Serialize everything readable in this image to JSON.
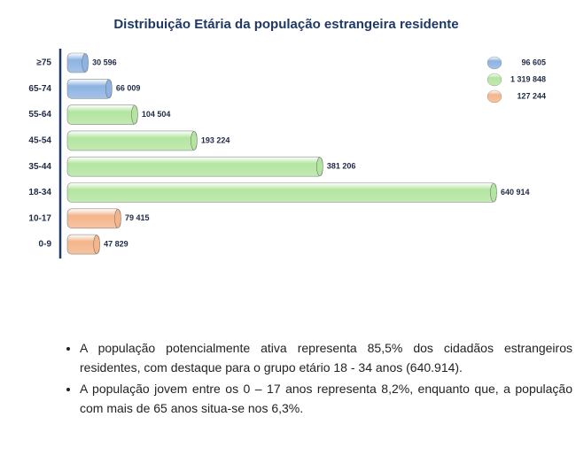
{
  "chart_data": {
    "type": "bar",
    "orientation": "horizontal",
    "title": "Distribuição Etária da população estrangeira residente",
    "categories": [
      "≥75",
      "65-74",
      "55-64",
      "45-54",
      "35-44",
      "18-34",
      "10-17",
      "0-9"
    ],
    "series": [
      {
        "name": "96 605",
        "color": "#8db3e2",
        "values": [
          30596,
          66009,
          null,
          null,
          null,
          null,
          null,
          null
        ],
        "value_labels": [
          "30 596",
          "66 009",
          null,
          null,
          null,
          null,
          null,
          null
        ]
      },
      {
        "name": "1 319 848",
        "color": "#b3e5a0",
        "values": [
          null,
          null,
          104504,
          193224,
          381206,
          640914,
          null,
          null
        ],
        "value_labels": [
          null,
          null,
          "104 504",
          "193 224",
          "381 206",
          "640 914",
          null,
          null
        ]
      },
      {
        "name": "127 244",
        "color": "#f4b58a",
        "values": [
          null,
          null,
          null,
          null,
          null,
          null,
          79415,
          47829
        ],
        "value_labels": [
          null,
          null,
          null,
          null,
          null,
          null,
          "79 415",
          "47 829"
        ]
      }
    ],
    "legend_position": "top-right"
  },
  "bullets": [
    "A população potencialmente ativa representa 85,5% dos cidadãos estrangeiros residentes, com destaque para o grupo etário 18 - 34 anos (640.914).",
    "A população jovem entre os 0 – 17 anos representa 8,2%, enquanto que, a população com mais de 65 anos situa-se nos 6,3%."
  ]
}
